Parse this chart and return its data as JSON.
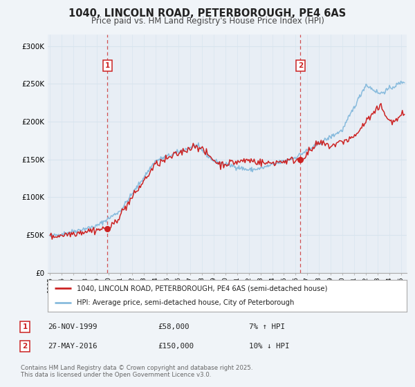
{
  "title": "1040, LINCOLN ROAD, PETERBOROUGH, PE4 6AS",
  "subtitle": "Price paid vs. HM Land Registry's House Price Index (HPI)",
  "title_fontsize": 10.5,
  "subtitle_fontsize": 8.5,
  "bg_color": "#f0f4f8",
  "plot_bg_color": "#e8eef5",
  "grid_color": "#d8e4ee",
  "ylabel_ticks": [
    "£0",
    "£50K",
    "£100K",
    "£150K",
    "£200K",
    "£250K",
    "£300K"
  ],
  "ytick_vals": [
    0,
    50000,
    100000,
    150000,
    200000,
    250000,
    300000
  ],
  "ylim": [
    0,
    315000
  ],
  "xmin": 1994.8,
  "xmax": 2025.5,
  "xticks": [
    1995,
    1996,
    1997,
    1998,
    1999,
    2000,
    2001,
    2002,
    2003,
    2004,
    2005,
    2006,
    2007,
    2008,
    2009,
    2010,
    2011,
    2012,
    2013,
    2014,
    2015,
    2016,
    2017,
    2018,
    2019,
    2020,
    2021,
    2022,
    2023,
    2024,
    2025
  ],
  "sale1_x": 1999.9,
  "sale1_y": 58000,
  "sale2_x": 2016.42,
  "sale2_y": 150000,
  "sale1_date": "26-NOV-1999",
  "sale1_price": "£58,000",
  "sale1_hpi": "7% ↑ HPI",
  "sale2_date": "27-MAY-2016",
  "sale2_price": "£150,000",
  "sale2_hpi": "10% ↓ HPI",
  "house_color": "#cc2222",
  "hpi_color": "#88bbdd",
  "vline_color": "#cc3333",
  "legend_house": "1040, LINCOLN ROAD, PETERBOROUGH, PE4 6AS (semi-detached house)",
  "legend_hpi": "HPI: Average price, semi-detached house, City of Peterborough",
  "footer": "Contains HM Land Registry data © Crown copyright and database right 2025.\nThis data is licensed under the Open Government Licence v3.0."
}
